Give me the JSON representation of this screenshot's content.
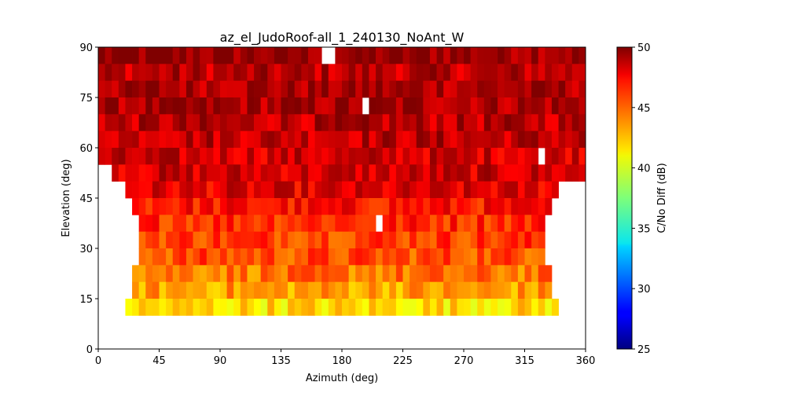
{
  "chart_data": {
    "type": "heatmap",
    "title": "az_el_JudoRoof-all_1_240130_NoAnt_W",
    "xlabel": "Azimuth (deg)",
    "ylabel": "Elevation (deg)",
    "xlim": [
      0,
      360
    ],
    "ylim": [
      0,
      90
    ],
    "xticks": [
      "0",
      "45",
      "90",
      "135",
      "180",
      "225",
      "270",
      "315",
      "360"
    ],
    "yticks": [
      "0",
      "15",
      "30",
      "45",
      "60",
      "75",
      "90"
    ],
    "bin_size_deg": {
      "azimuth": 5,
      "elevation": 5
    },
    "colorscale": "jet",
    "colorbar": {
      "label": "C/No Diff (dB)",
      "range": [
        25,
        50
      ],
      "ticks": [
        "25",
        "30",
        "35",
        "40",
        "45",
        "50"
      ]
    },
    "elevation_rows": [
      {
        "elevation": [
          85,
          90
        ],
        "azimuth": [
          0,
          360
        ],
        "cn0_diff_dB": 49.5,
        "gaps_azimuth": [
          [
            165,
            170
          ],
          [
            170,
            175
          ]
        ]
      },
      {
        "elevation": [
          80,
          85
        ],
        "azimuth": [
          0,
          360
        ],
        "cn0_diff_dB": 48.5
      },
      {
        "elevation": [
          75,
          80
        ],
        "azimuth": [
          0,
          360
        ],
        "cn0_diff_dB": 49
      },
      {
        "elevation": [
          70,
          75
        ],
        "azimuth": [
          0,
          360
        ],
        "cn0_diff_dB": 49,
        "gaps_azimuth": [
          [
            195,
            200
          ]
        ]
      },
      {
        "elevation": [
          65,
          70
        ],
        "azimuth": [
          0,
          360
        ],
        "cn0_diff_dB": 48.5
      },
      {
        "elevation": [
          60,
          65
        ],
        "azimuth": [
          0,
          360
        ],
        "cn0_diff_dB": 48.5
      },
      {
        "elevation": [
          55,
          60
        ],
        "azimuth": [
          0,
          360
        ],
        "cn0_diff_dB": 48,
        "gaps_azimuth": [
          [
            325,
            330
          ]
        ]
      },
      {
        "elevation": [
          50,
          55
        ],
        "azimuth": [
          10,
          360
        ],
        "cn0_diff_dB": 48
      },
      {
        "elevation": [
          45,
          50
        ],
        "azimuth": [
          20,
          340
        ],
        "cn0_diff_dB": 47.5
      },
      {
        "elevation": [
          40,
          45
        ],
        "azimuth": [
          25,
          335
        ],
        "cn0_diff_dB": 46.5
      },
      {
        "elevation": [
          35,
          40
        ],
        "azimuth": [
          30,
          330
        ],
        "cn0_diff_dB": 46,
        "gaps_azimuth": [
          [
            205,
            210
          ]
        ]
      },
      {
        "elevation": [
          30,
          35
        ],
        "azimuth": [
          30,
          330
        ],
        "cn0_diff_dB": 45.5
      },
      {
        "elevation": [
          25,
          30
        ],
        "azimuth": [
          30,
          330
        ],
        "cn0_diff_dB": 45
      },
      {
        "elevation": [
          20,
          25
        ],
        "azimuth": [
          25,
          335
        ],
        "cn0_diff_dB": 44
      },
      {
        "elevation": [
          15,
          20
        ],
        "azimuth": [
          25,
          335
        ],
        "cn0_diff_dB": 43
      },
      {
        "elevation": [
          10,
          15
        ],
        "azimuth": [
          20,
          340
        ],
        "cn0_diff_dB": 41.5
      }
    ]
  }
}
